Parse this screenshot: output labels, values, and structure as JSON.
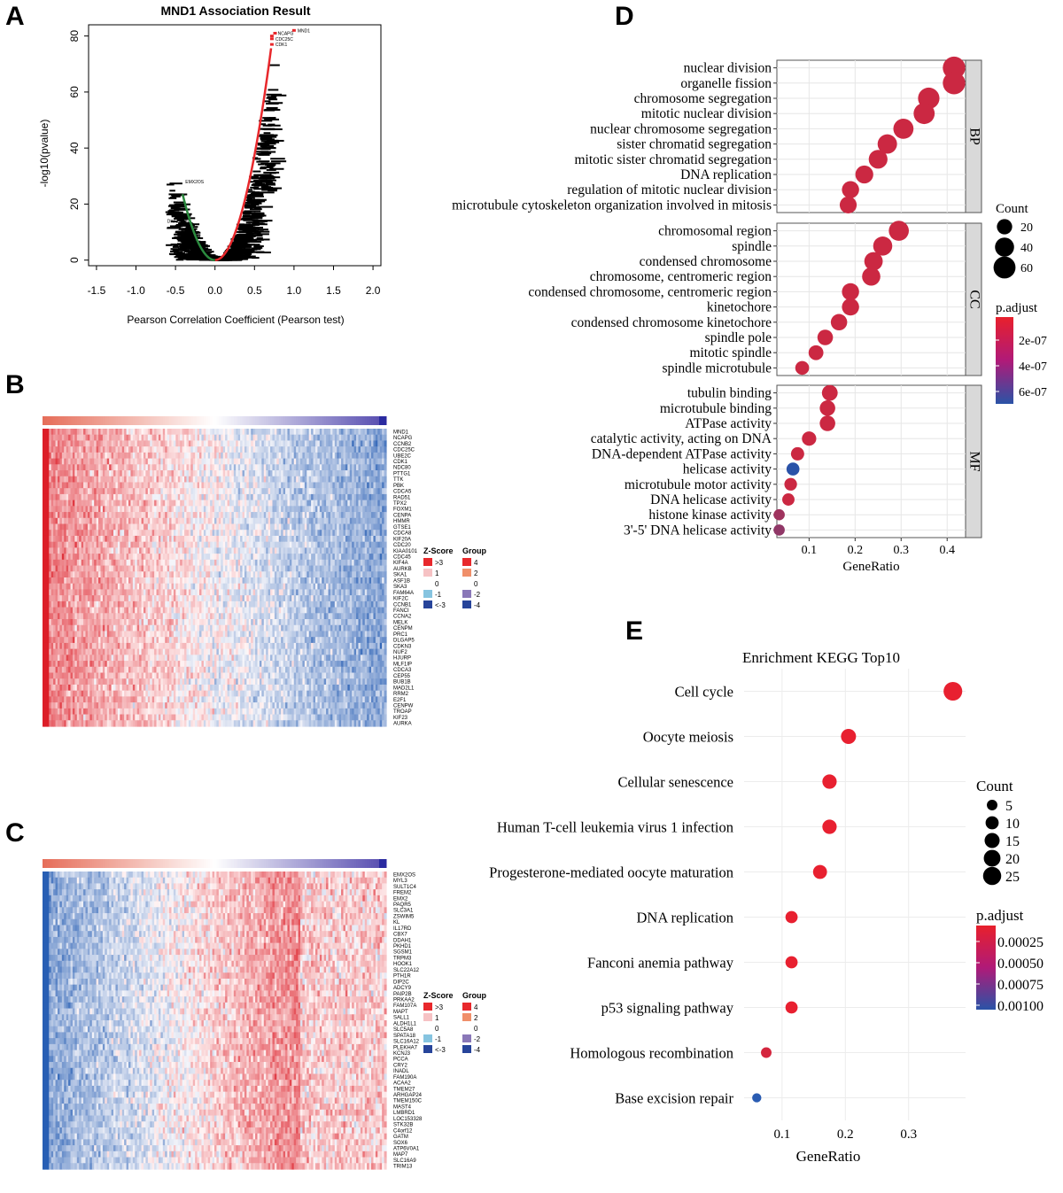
{
  "labels": {
    "a": "A",
    "b": "B",
    "c": "C",
    "d": "D",
    "e": "E"
  },
  "chart_data": [
    {
      "panel": "A",
      "type": "scatter",
      "title": "MND1 Association Result",
      "xlabel": "Pearson Correlation Coefficient (Pearson test)",
      "ylabel": "-log10(pvalue)",
      "xlim": [
        -1.6,
        2.1
      ],
      "ylim": [
        -2,
        84
      ],
      "xticks": [
        "-1.5",
        "-1.0",
        "-0.5",
        "0.0",
        "0.5",
        "1.0",
        "1.5",
        "2.0"
      ],
      "yticks": [
        "0",
        "20",
        "40",
        "60",
        "80"
      ],
      "point_labels": [
        {
          "text": "MND1",
          "x": 1.0,
          "y": 82
        },
        {
          "text": "NCAPG",
          "x": 0.75,
          "y": 81
        },
        {
          "text": "CDC25C",
          "x": 0.72,
          "y": 79
        },
        {
          "text": "CDK1",
          "x": 0.72,
          "y": 77
        },
        {
          "text": "EMX2OS",
          "x": -0.42,
          "y": 28
        },
        {
          "text": "DKFZp686",
          "x": -0.65,
          "y": 14
        }
      ],
      "colors": {
        "positive": "#e8282c",
        "negative": "#2b8a3e",
        "background": "#000000"
      }
    },
    {
      "panel": "B",
      "type": "heatmap",
      "genes": [
        "MND1",
        "NCAPG",
        "CCNB2",
        "CDC25C",
        "UBE2C",
        "CDK1",
        "NDC80",
        "PTTG1",
        "TTK",
        "PBK",
        "CDCA5",
        "RAD51",
        "TPX2",
        "FOXM1",
        "CENPA",
        "HMMR",
        "GTSE1",
        "CDCA8",
        "KIF20A",
        "CDC20",
        "KIAA0101",
        "CDC45",
        "KIF4A",
        "AURKB",
        "SKA1",
        "ASF1B",
        "SKA3",
        "FAM64A",
        "KIF2C",
        "CCNB1",
        "FANCI",
        "CCNA2",
        "MELK",
        "CENPM",
        "PRC1",
        "DLGAP5",
        "CDKN3",
        "NUF2",
        "HJURP",
        "MLF1IP",
        "CDCA3",
        "CEP55",
        "BUB1B",
        "MAD2L1",
        "RRM2",
        "E2F1",
        "CENPW",
        "TROAP",
        "KIF23",
        "AURKA"
      ],
      "direction": "positive",
      "legend": {
        "zscore_title": "Z-Score",
        "zscore_labels": [
          ">3",
          "1",
          "0",
          "-1",
          "<-3"
        ],
        "group_title": "Group",
        "group_labels": [
          "4",
          "2",
          "0",
          "-2",
          "-4"
        ]
      }
    },
    {
      "panel": "C",
      "type": "heatmap",
      "genes": [
        "EMX2OS",
        "MYL3",
        "SULT1C4",
        "FREM2",
        "EMX2",
        "PAQR5",
        "SLC3A1",
        "ZSWIM5",
        "KL",
        "IL17RD",
        "CBX7",
        "DDAH1",
        "PKHD1",
        "SGSM1",
        "TRPM3",
        "HOOK1",
        "SLC22A12",
        "PTH1R",
        "DIP2C",
        "ADCY9",
        "PAIP2B",
        "PRKAA2",
        "FAM107A",
        "MAPT",
        "SALL1",
        "ALDH1L1",
        "SLC5A8",
        "SPATA18",
        "SLC16A12",
        "PLEKHA7",
        "KCNJ3",
        "PCCA",
        "CRY2",
        "INADL",
        "FAM190A",
        "ACAA2",
        "TMEM27",
        "ARHGAP24",
        "TMEM150C",
        "MAST4",
        "LMBRD1",
        "LOC153328",
        "STK32B",
        "C4orf12",
        "GATM",
        "SOX6",
        "ATP6V0A1",
        "MAP7",
        "SLC16A9",
        "TRIM13"
      ],
      "direction": "negative",
      "legend": {
        "zscore_title": "Z-Score",
        "zscore_labels": [
          ">3",
          "1",
          "0",
          "-1",
          "<-3"
        ],
        "group_title": "Group",
        "group_labels": [
          "4",
          "2",
          "0",
          "-2",
          "-4"
        ]
      }
    },
    {
      "panel": "D",
      "type": "scatter",
      "xlabel": "GeneRatio",
      "xlim": [
        0.03,
        0.44
      ],
      "xticks": [
        0.1,
        0.2,
        0.3,
        0.4
      ],
      "facets": [
        {
          "name": "BP",
          "terms": [
            {
              "term": "nuclear division",
              "x": 0.415,
              "count": 64,
              "padj": 1e-07
            },
            {
              "term": "organelle fission",
              "x": 0.415,
              "count": 64,
              "padj": 1e-07
            },
            {
              "term": "chromosome segregation",
              "x": 0.36,
              "count": 56,
              "padj": 1e-07
            },
            {
              "term": "mitotic nuclear division",
              "x": 0.35,
              "count": 53,
              "padj": 1e-07
            },
            {
              "term": "nuclear chromosome segregation",
              "x": 0.305,
              "count": 47,
              "padj": 1e-07
            },
            {
              "term": "sister chromatid segregation",
              "x": 0.27,
              "count": 42,
              "padj": 1e-07
            },
            {
              "term": "mitotic sister chromatid segregation",
              "x": 0.25,
              "count": 38,
              "padj": 1e-07
            },
            {
              "term": "DNA replication",
              "x": 0.22,
              "count": 33,
              "padj": 1e-07
            },
            {
              "term": "regulation of mitotic nuclear division",
              "x": 0.19,
              "count": 29,
              "padj": 1e-07
            },
            {
              "term": "microtubule cytoskeleton organization involved in mitosis",
              "x": 0.185,
              "count": 28,
              "padj": 1e-07
            }
          ]
        },
        {
          "name": "CC",
          "terms": [
            {
              "term": "chromosomal region",
              "x": 0.295,
              "count": 46,
              "padj": 1e-07
            },
            {
              "term": "spindle",
              "x": 0.26,
              "count": 40,
              "padj": 1e-07
            },
            {
              "term": "condensed chromosome",
              "x": 0.24,
              "count": 36,
              "padj": 1e-07
            },
            {
              "term": "chromosome, centromeric region",
              "x": 0.235,
              "count": 35,
              "padj": 1e-07
            },
            {
              "term": "condensed chromosome, centromeric region",
              "x": 0.19,
              "count": 29,
              "padj": 1e-07
            },
            {
              "term": "kinetochore",
              "x": 0.19,
              "count": 29,
              "padj": 1e-07
            },
            {
              "term": "condensed chromosome kinetochore",
              "x": 0.165,
              "count": 25,
              "padj": 1e-07
            },
            {
              "term": "spindle pole",
              "x": 0.135,
              "count": 21,
              "padj": 1e-07
            },
            {
              "term": "mitotic spindle",
              "x": 0.115,
              "count": 18,
              "padj": 1e-07
            },
            {
              "term": "spindle microtubule",
              "x": 0.085,
              "count": 14,
              "padj": 1e-07
            }
          ]
        },
        {
          "name": "MF",
          "terms": [
            {
              "term": "tubulin binding",
              "x": 0.145,
              "count": 22,
              "padj": 1e-07
            },
            {
              "term": "microtubule binding",
              "x": 0.14,
              "count": 21,
              "padj": 1e-07
            },
            {
              "term": "ATPase activity",
              "x": 0.14,
              "count": 21,
              "padj": 1e-07
            },
            {
              "term": "catalytic activity, acting on DNA",
              "x": 0.1,
              "count": 16,
              "padj": 1e-07
            },
            {
              "term": "DNA-dependent ATPase activity",
              "x": 0.075,
              "count": 12,
              "padj": 1e-07
            },
            {
              "term": "helicase activity",
              "x": 0.065,
              "count": 11,
              "padj": 6.5e-07
            },
            {
              "term": "microtubule motor activity",
              "x": 0.06,
              "count": 10,
              "padj": 1e-07
            },
            {
              "term": "DNA helicase activity",
              "x": 0.055,
              "count": 9,
              "padj": 1e-07
            },
            {
              "term": "histone kinase activity",
              "x": 0.035,
              "count": 6,
              "padj": 2.5e-07
            },
            {
              "term": "3'-5' DNA helicase activity",
              "x": 0.035,
              "count": 6,
              "padj": 3e-07
            }
          ]
        }
      ],
      "size_legend": {
        "title": "Count",
        "values": [
          20,
          40,
          60
        ]
      },
      "color_legend": {
        "title": "p.adjust",
        "labels": [
          "2e-07",
          "4e-07",
          "6e-07"
        ]
      }
    },
    {
      "panel": "E",
      "type": "scatter",
      "title": "Enrichment KEGG Top10",
      "xlabel": "GeneRatio",
      "xlim": [
        0.04,
        0.39
      ],
      "xticks": [
        "0.1",
        "0.2",
        "0.3"
      ],
      "terms": [
        {
          "term": "Cell cycle",
          "x": 0.37,
          "count": 27,
          "padj": 0.0001
        },
        {
          "term": "Oocyte meiosis",
          "x": 0.205,
          "count": 15,
          "padj": 0.0001
        },
        {
          "term": "Cellular senescence",
          "x": 0.175,
          "count": 13,
          "padj": 0.0001
        },
        {
          "term": "Human T-cell leukemia virus 1 infection",
          "x": 0.175,
          "count": 13,
          "padj": 0.0001
        },
        {
          "term": "Progesterone-mediated oocyte maturation",
          "x": 0.16,
          "count": 12,
          "padj": 0.0001
        },
        {
          "term": "DNA replication",
          "x": 0.115,
          "count": 8,
          "padj": 0.0001
        },
        {
          "term": "Fanconi anemia pathway",
          "x": 0.115,
          "count": 8,
          "padj": 0.0001
        },
        {
          "term": "p53 signaling pathway",
          "x": 0.115,
          "count": 8,
          "padj": 0.0001
        },
        {
          "term": "Homologous recombination",
          "x": 0.075,
          "count": 5,
          "padj": 0.0002
        },
        {
          "term": "Base excision repair",
          "x": 0.06,
          "count": 3,
          "padj": 0.00105
        }
      ],
      "size_legend": {
        "title": "Count",
        "values": [
          5,
          10,
          15,
          20,
          25
        ]
      },
      "color_legend": {
        "title": "p.adjust",
        "labels": [
          "0.00025",
          "0.00050",
          "0.00075",
          "0.00100"
        ]
      }
    }
  ]
}
